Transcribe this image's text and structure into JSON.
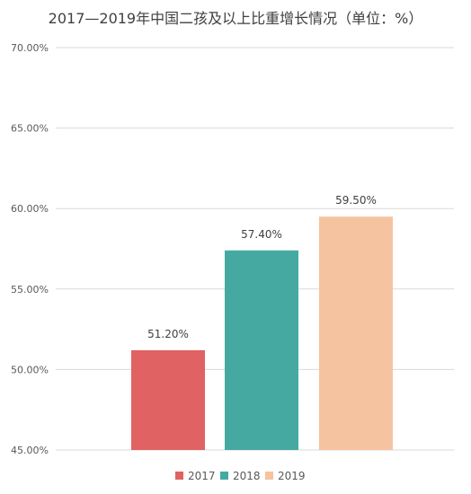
{
  "chart_data": {
    "type": "bar",
    "title": "2017—2019年中国二孩及以上比重增长情况（单位：%）",
    "categories": [
      "2017",
      "2018",
      "2019"
    ],
    "values": [
      51.2,
      57.4,
      59.5
    ],
    "value_labels": [
      "51.20%",
      "57.40%",
      "59.50%"
    ],
    "ylim": [
      45,
      70
    ],
    "yticks": [
      70,
      65,
      60,
      55,
      50,
      45
    ],
    "ytick_labels": [
      "70.00%",
      "65.00%",
      "60.00%",
      "55.00%",
      "50.00%",
      "45.00%"
    ],
    "colors": [
      "#e06262",
      "#45a9a2",
      "#f5c3a0"
    ],
    "grid": true,
    "legend_position": "bottom",
    "legend": [
      "2017",
      "2018",
      "2019"
    ]
  }
}
